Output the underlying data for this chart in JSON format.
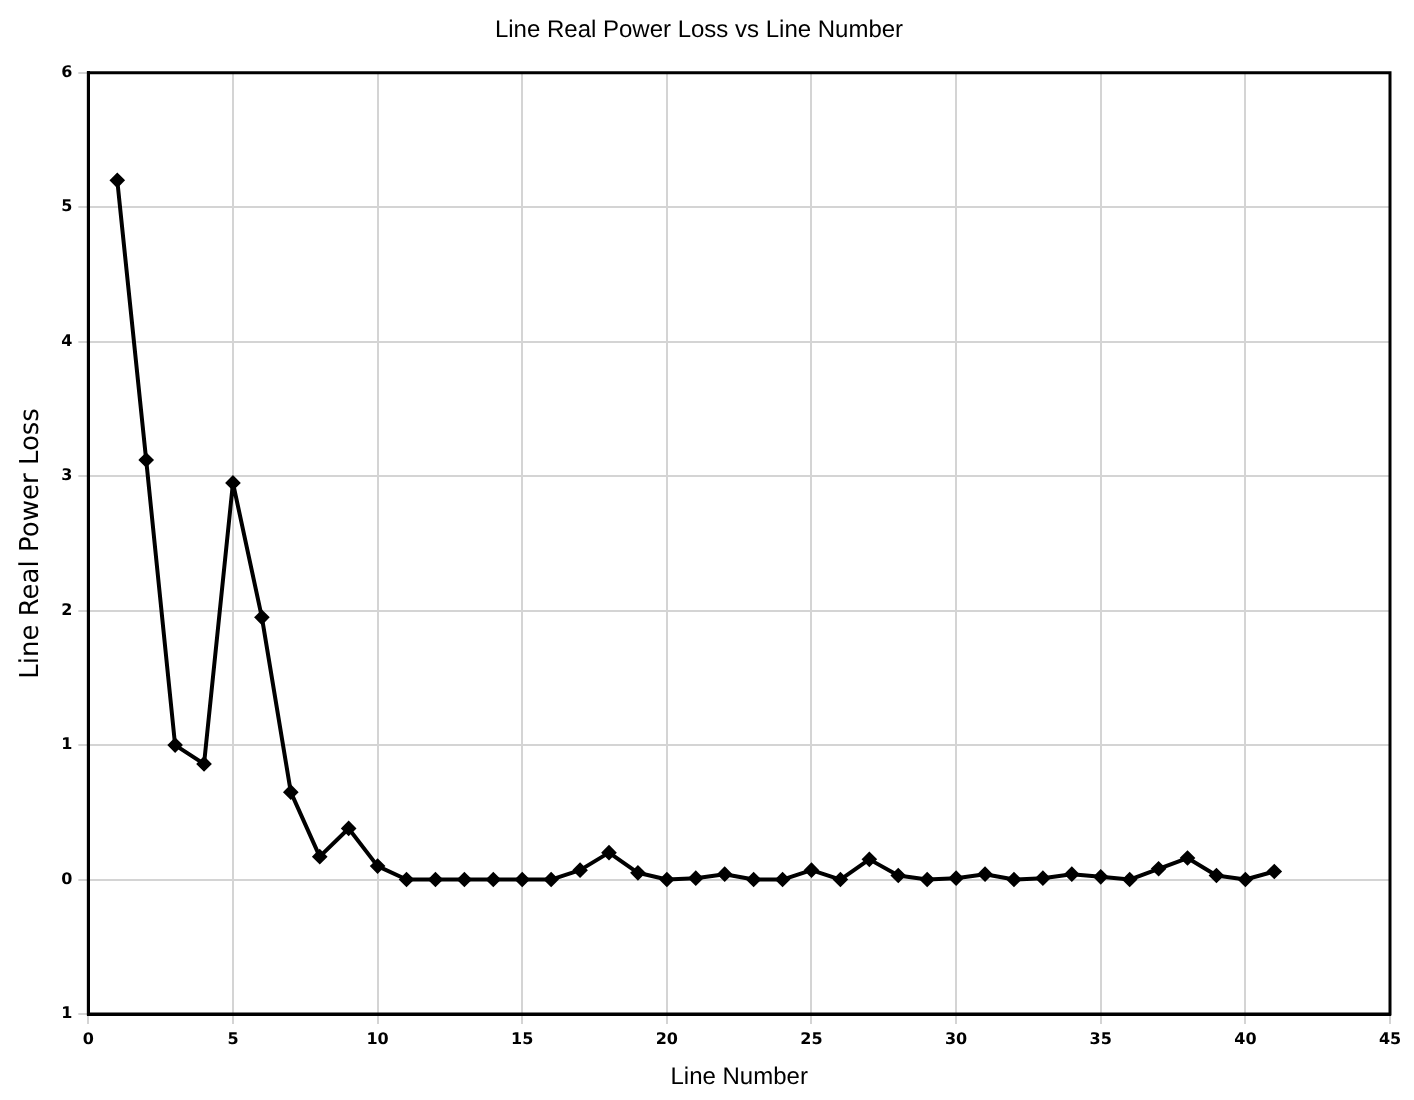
{
  "chart_data": {
    "type": "line",
    "title": "Line Real Power Loss vs Line Number",
    "xlabel": "Line Number",
    "ylabel": "Line Real Power Loss",
    "x": [
      1,
      2,
      3,
      4,
      5,
      6,
      7,
      8,
      9,
      10,
      11,
      12,
      13,
      14,
      15,
      16,
      17,
      18,
      19,
      20,
      21,
      22,
      23,
      24,
      25,
      26,
      27,
      28,
      29,
      30,
      31,
      32,
      33,
      34,
      35,
      36,
      37,
      38,
      39,
      40,
      41
    ],
    "series": [
      {
        "color": "#000000",
        "values": [
          5.2,
          3.12,
          1.0,
          0.86,
          2.95,
          1.95,
          0.65,
          0.17,
          0.38,
          0.1,
          0,
          0,
          0,
          0,
          0,
          0,
          0.07,
          0.2,
          0.05,
          0,
          0.01,
          0.04,
          0,
          0,
          0.07,
          0,
          0.15,
          0.03,
          0,
          0.01,
          0.04,
          0,
          0.01,
          0.04,
          0.02,
          0,
          0.08,
          0.16,
          0.03,
          0,
          0.06
        ]
      }
    ],
    "xlim": [
      0,
      45
    ],
    "xticks": [
      0,
      5,
      10,
      15,
      20,
      25,
      30,
      35,
      40,
      45
    ],
    "ylim": [
      -1,
      6
    ],
    "yticks": [
      {
        "value": -1,
        "label": "1"
      },
      0,
      1,
      2,
      3,
      4,
      5,
      6
    ],
    "grid": true,
    "marker": "diamond",
    "line_style": "solid"
  }
}
